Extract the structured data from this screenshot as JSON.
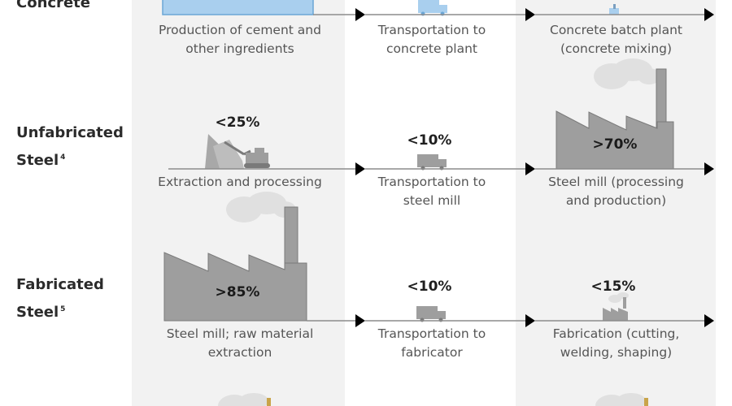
{
  "rows": [
    {
      "label": "Concrete",
      "footnote": "",
      "stages": [
        {
          "caption_1": "Production of cement and",
          "caption_2": "other ingredients",
          "share": ""
        },
        {
          "caption_1": "Transportation to",
          "caption_2": "concrete plant",
          "share": ""
        },
        {
          "caption_1": "Concrete batch plant",
          "caption_2": "(concrete mixing)",
          "share": ""
        }
      ]
    },
    {
      "label_1": "Unfabricated",
      "label_2": "Steel",
      "footnote": "4",
      "stages": [
        {
          "caption_1": "Extraction and processing",
          "caption_2": "",
          "share": "<25%"
        },
        {
          "caption_1": "Transportation to",
          "caption_2": "steel mill",
          "share": "<10%"
        },
        {
          "caption_1": "Steel mill (processing",
          "caption_2": "and production)",
          "share": ">70%"
        }
      ]
    },
    {
      "label_1": "Fabricated",
      "label_2": "Steel",
      "footnote": "5",
      "stages": [
        {
          "caption_1": "Steel mill; raw material",
          "caption_2": "extraction",
          "share": ">85%"
        },
        {
          "caption_1": "Transportation to",
          "caption_2": "fabricator",
          "share": "<10%"
        },
        {
          "caption_1": "Fabrication (cutting,",
          "caption_2": "welding, shaping)",
          "share": "<15%"
        }
      ]
    }
  ],
  "colors": {
    "band": "#f2f2f2",
    "industry_gray": "#9e9e9e",
    "industry_outline": "#7a7a7a",
    "smoke": "#e0e0e0",
    "concrete_blue": "#a9cfee",
    "arrow": "#000000",
    "accent_gold": "#c9a44a"
  },
  "icons": {
    "concrete_stage_1": "cement-block-icon",
    "concrete_stage_2": "truck-icon",
    "concrete_stage_3": "batch-plant-icon",
    "steel_stage_1": "mining-excavator-icon",
    "steel_stage_2": "truck-icon",
    "steel_stage_3": "steel-mill-icon",
    "fab_stage_1": "steel-mill-icon",
    "fab_stage_2": "truck-icon",
    "fab_stage_3": "small-factory-icon"
  }
}
